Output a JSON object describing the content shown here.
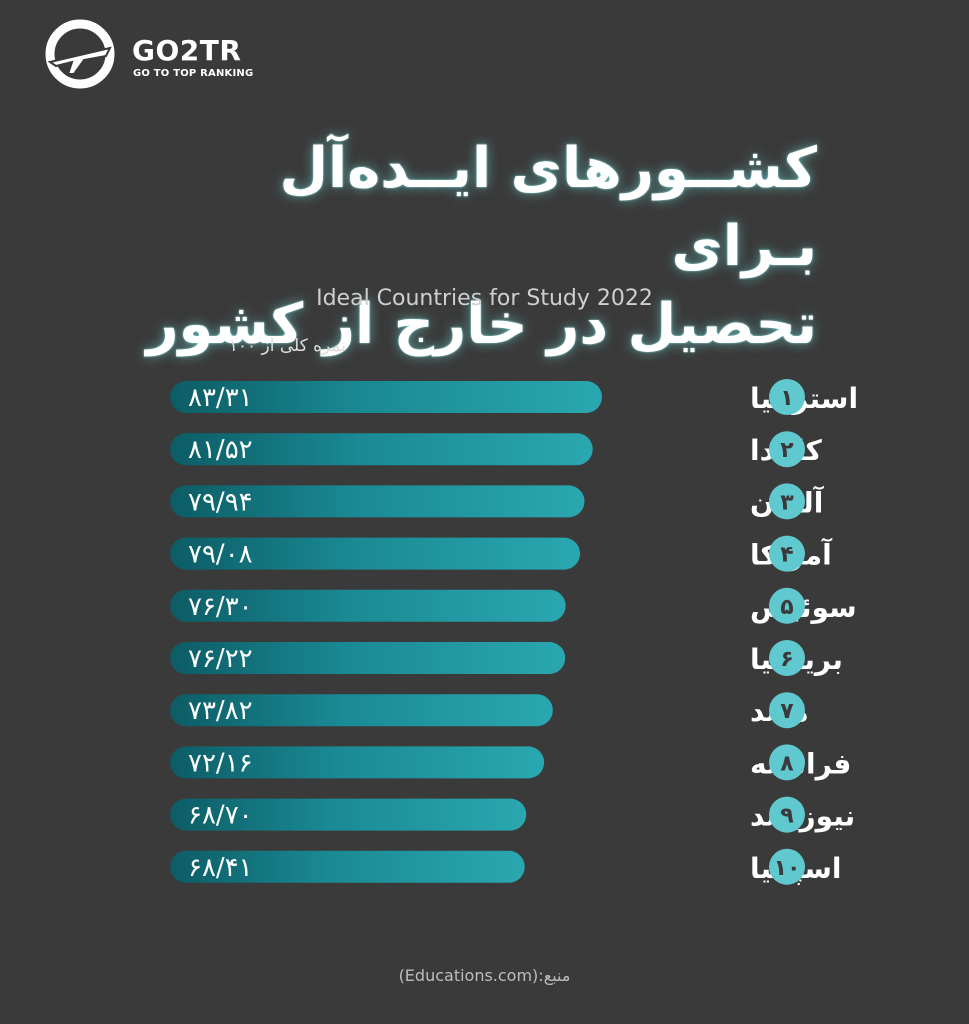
{
  "brand": {
    "name": "GO2TR",
    "tagline": "GO TO TOP RANKING"
  },
  "colors": {
    "background": "#3a3a3a",
    "bar": "#2aa7b0",
    "bar_dark": "#0c5c65",
    "rank_circle": "#5fc9cf"
  },
  "chart_data": {
    "type": "bar",
    "orientation": "horizontal",
    "title_lines": [
      "کشــورهای ایــده‌آل بـرای",
      "تحصیل در خارج از کشور"
    ],
    "subtitle": "Ideal Countries for Study 2022",
    "value_axis_label": "نمره کلی از ۱۰۰",
    "source": "(Educations.com):منبع",
    "ranks": [
      "۱",
      "۲",
      "۳",
      "۴",
      "۵",
      "۶",
      "۷",
      "۸",
      "۹",
      "۱۰"
    ],
    "categories": [
      "استرالیا",
      "کانادا",
      "آلمان",
      "آمریکا",
      "سوئیس",
      "بریتانیا",
      "هلند",
      "فرانسه",
      "نیوزیلند",
      "اسپانیا"
    ],
    "values": [
      83.31,
      81.52,
      79.94,
      79.08,
      76.3,
      76.22,
      73.82,
      72.16,
      68.7,
      68.41
    ],
    "value_labels": [
      "۸۳/۳۱",
      "۸۱/۵۲",
      "۷۹/۹۴",
      "۷۹/۰۸",
      "۷۶/۳۰",
      "۷۶/۲۲",
      "۷۳/۸۲",
      "۷۲/۱۶",
      "۶۸/۷۰",
      "۶۸/۴۱"
    ]
  }
}
